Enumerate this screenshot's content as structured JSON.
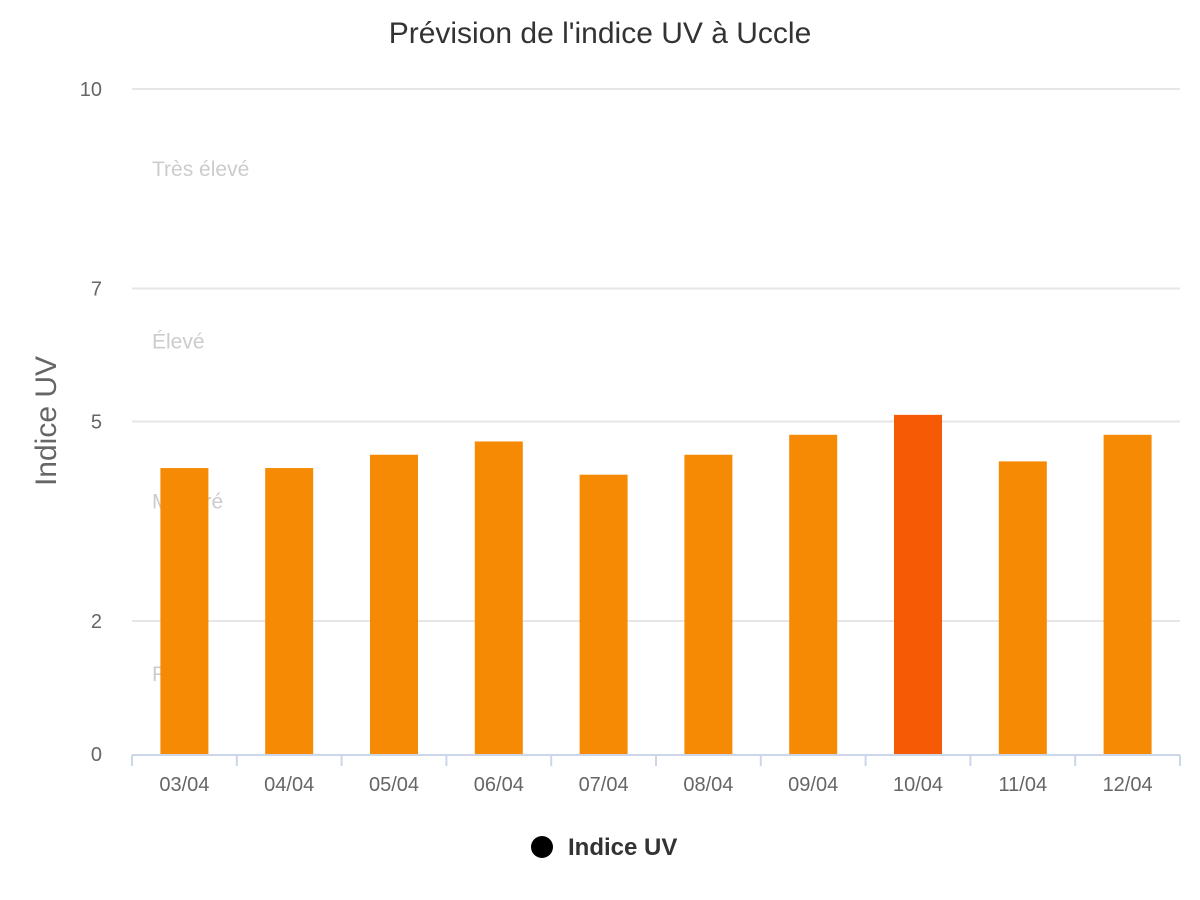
{
  "chart_data": {
    "type": "bar",
    "title": "Prévision de l'indice UV à Uccle",
    "xlabel": "",
    "ylabel": "Indice UV",
    "ylim": [
      0,
      10
    ],
    "y_ticks": [
      0,
      2,
      5,
      7,
      10
    ],
    "grid": true,
    "legend_position": "bottom-center",
    "categories": [
      "03/04",
      "04/04",
      "05/04",
      "06/04",
      "07/04",
      "08/04",
      "09/04",
      "10/04",
      "11/04",
      "12/04"
    ],
    "series": [
      {
        "name": "Indice UV",
        "values": [
          4.3,
          4.3,
          4.5,
          4.7,
          4.2,
          4.5,
          4.8,
          5.1,
          4.4,
          4.8
        ],
        "colors": [
          "#f78a04",
          "#f78a04",
          "#f78a04",
          "#f78a04",
          "#f78a04",
          "#f78a04",
          "#f78a04",
          "#f75a04",
          "#f78a04",
          "#f78a04"
        ]
      }
    ],
    "bands": [
      {
        "label": "Très élevé",
        "from": 7,
        "to": 10
      },
      {
        "label": "Élevé",
        "from": 5,
        "to": 7
      },
      {
        "label": "Modéré",
        "from": 2,
        "to": 5
      },
      {
        "label": "Faible",
        "from": 0,
        "to": 2
      }
    ],
    "legend": {
      "label": "Indice UV",
      "marker_color": "#000000"
    }
  }
}
